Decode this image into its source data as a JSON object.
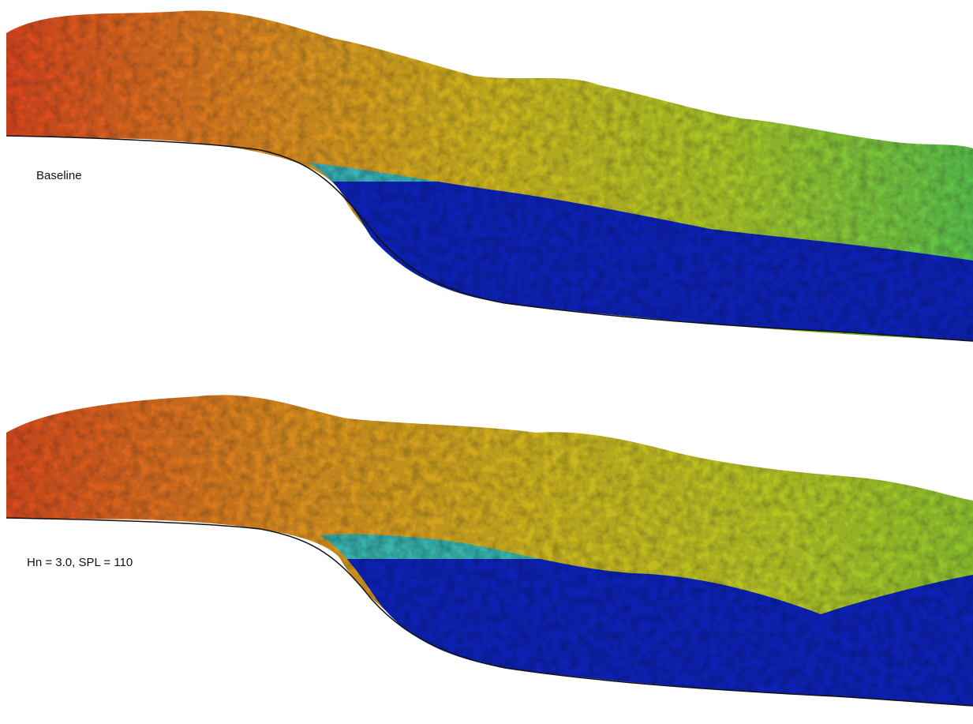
{
  "panels": [
    {
      "label": "Baseline"
    },
    {
      "label": "Hn = 3.0, SPL = 110"
    }
  ],
  "colormap": [
    "#0a1bb0",
    "#1f5fe0",
    "#19b9d8",
    "#2fc95a",
    "#c8d21e",
    "#e8a51c",
    "#e0451e"
  ]
}
